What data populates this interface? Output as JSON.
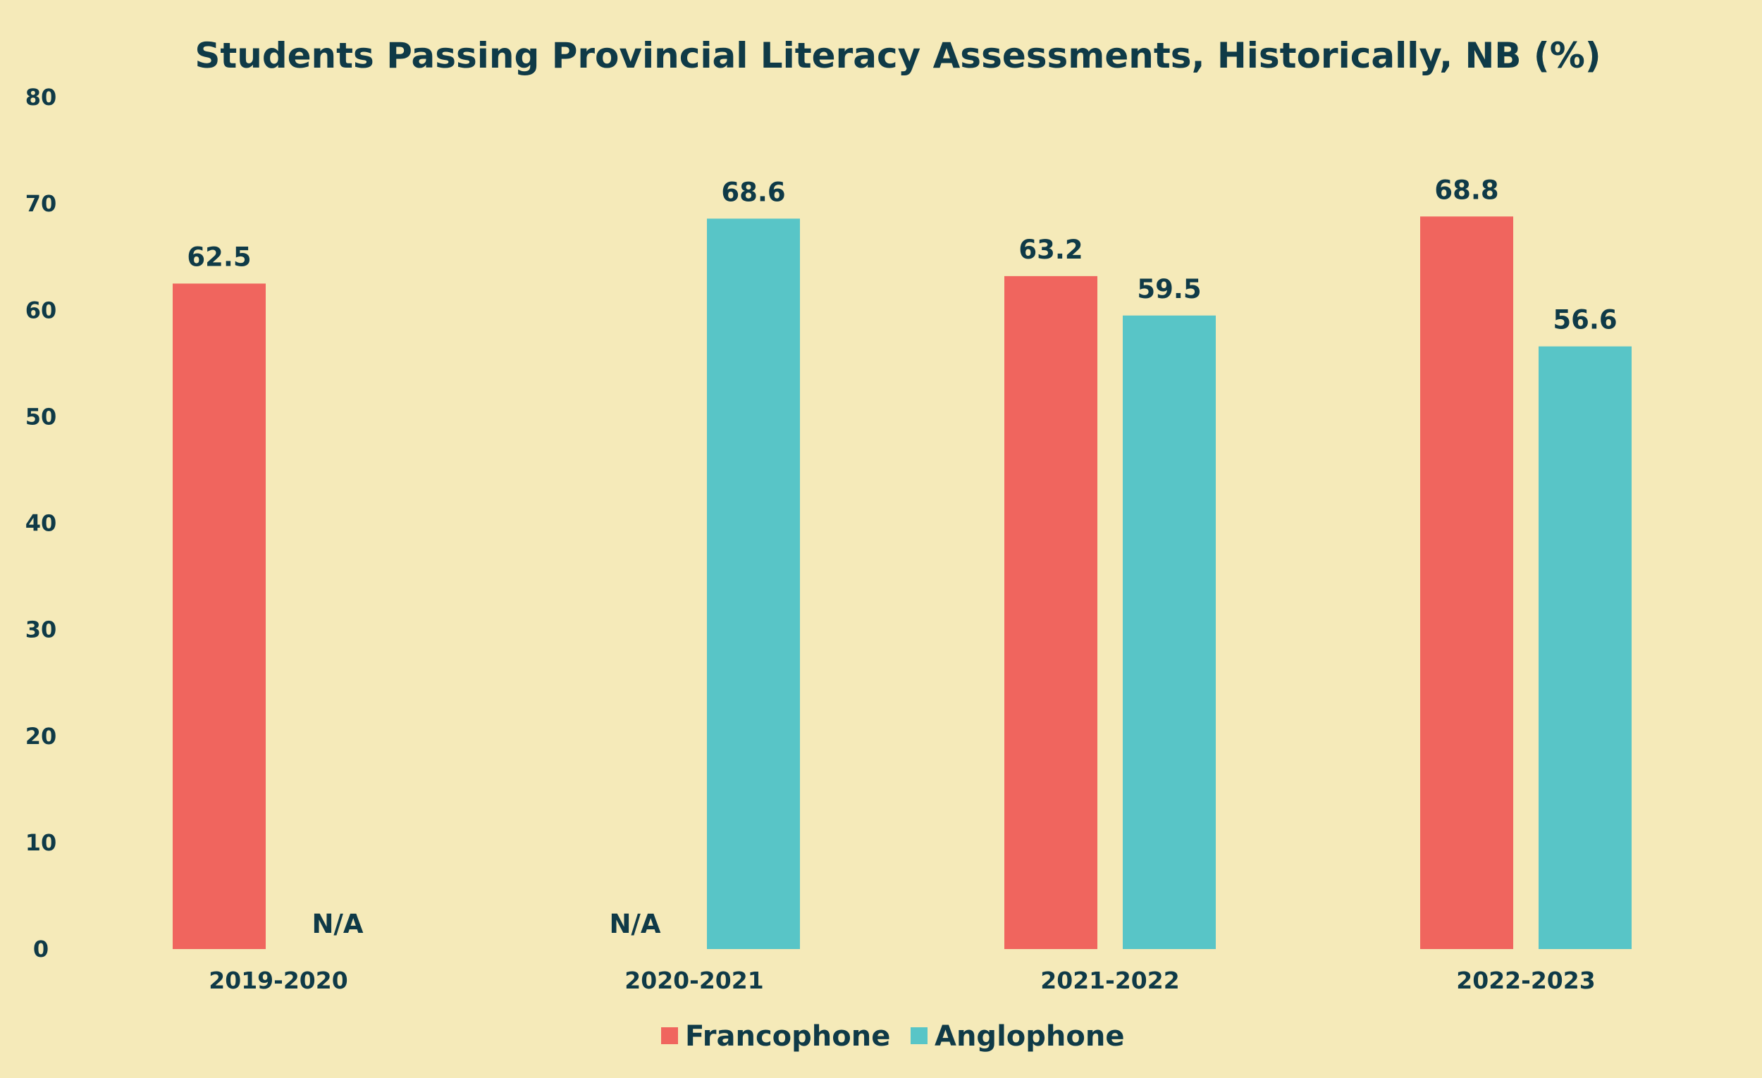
{
  "chart_data": {
    "type": "bar",
    "title": "Students Passing Provincial Literacy Assessments, Historically, NB (%)",
    "xlabel": "",
    "ylabel": "",
    "ylim": [
      0,
      80
    ],
    "yticks": [
      0,
      10,
      20,
      30,
      40,
      50,
      60,
      70,
      80
    ],
    "grid": false,
    "legend_position": "bottom-center",
    "categories": [
      "2019-2020",
      "2020-2021",
      "2021-2022",
      "2022-2023"
    ],
    "missing_label": "N/A",
    "series": [
      {
        "name": "Francophone",
        "color": "#f0655e",
        "values": [
          62.5,
          null,
          63.2,
          68.8
        ],
        "labels": [
          "62.5",
          "N/A",
          "63.2",
          "68.8"
        ]
      },
      {
        "name": "Anglophone",
        "color": "#58c5c7",
        "values": [
          null,
          68.6,
          59.5,
          56.6
        ],
        "labels": [
          "N/A",
          "68.6",
          "59.5",
          "56.6"
        ]
      }
    ]
  }
}
